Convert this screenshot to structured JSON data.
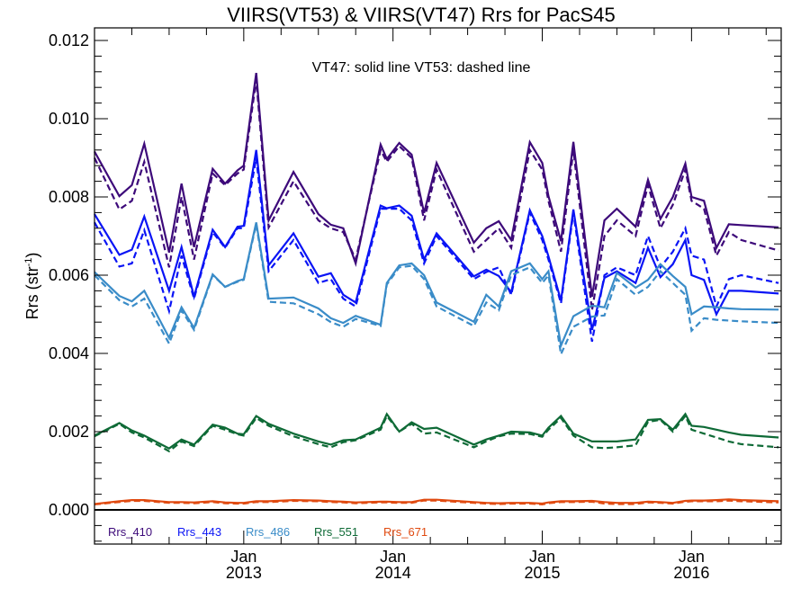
{
  "chart_data": {
    "type": "line",
    "title": "VIIRS(VT53) & VIIRS(VT47)  Rrs for PacS45",
    "annotation": "VT47: solid line   VT53: dashed line",
    "ylabel": "Rrs (str",
    "ylabel_sup": "-1",
    "ylabel_suffix": ")",
    "xlabel": "",
    "ylim": [
      -0.0009,
      0.0124
    ],
    "xlim": [
      "2012-01",
      "2016-08"
    ],
    "yticks": [
      0.0,
      0.002,
      0.004,
      0.006,
      0.008,
      0.01,
      0.012
    ],
    "ytick_labels": [
      "0.000",
      "0.002",
      "0.004",
      "0.006",
      "0.008",
      "0.010",
      "0.012"
    ],
    "xticks": [
      {
        "month": 12,
        "line1": "Jan",
        "line2": "2013"
      },
      {
        "month": 24,
        "line1": "Jan",
        "line2": "2014"
      },
      {
        "month": 36,
        "line1": "Jan",
        "line2": "2015"
      },
      {
        "month": 48,
        "line1": "Jan",
        "line2": "2016"
      }
    ],
    "x_month_index": [
      0,
      2,
      3,
      4,
      6,
      7,
      8,
      9.5,
      10.5,
      11.5,
      12,
      13,
      14,
      16,
      18,
      19,
      20,
      21,
      23,
      23.5,
      24.5,
      25.5,
      26.5,
      27.5,
      30.5,
      31.5,
      32.5,
      33.5,
      35,
      36,
      36.5,
      37.5,
      38.5,
      40,
      41,
      42,
      43.5,
      44.5,
      45.5,
      46.5,
      47.5,
      48,
      49,
      50,
      51,
      52,
      55
    ],
    "series": [
      {
        "name": "Rrs_410",
        "color": "#3d0a7a",
        "style": "solid",
        "values": [
          0.00916,
          0.00802,
          0.0083,
          0.00936,
          0.00658,
          0.00834,
          0.00672,
          0.00872,
          0.00834,
          0.00868,
          0.0088,
          0.01117,
          0.0074,
          0.00864,
          0.00756,
          0.00729,
          0.0072,
          0.0063,
          0.00934,
          0.00897,
          0.00938,
          0.00908,
          0.00759,
          0.00887,
          0.00683,
          0.0072,
          0.00738,
          0.0069,
          0.0094,
          0.00887,
          0.00802,
          0.00687,
          0.00941,
          0.00545,
          0.0074,
          0.0077,
          0.00724,
          0.00844,
          0.00744,
          0.008,
          0.00885,
          0.008,
          0.0079,
          0.0067,
          0.0073,
          0.00728,
          0.00722
        ]
      },
      {
        "name": "Rrs_410",
        "color": "#3d0a7a",
        "style": "dashed",
        "values": [
          0.009,
          0.00768,
          0.0079,
          0.0089,
          0.0062,
          0.008,
          0.0064,
          0.0086,
          0.0083,
          0.0086,
          0.0087,
          0.011,
          0.00722,
          0.0084,
          0.0074,
          0.0072,
          0.0071,
          0.0064,
          0.0092,
          0.0089,
          0.0093,
          0.009,
          0.0074,
          0.0087,
          0.0066,
          0.0069,
          0.0072,
          0.0067,
          0.0092,
          0.0087,
          0.0079,
          0.0066,
          0.0092,
          0.0051,
          0.007,
          0.0074,
          0.007,
          0.0083,
          0.0072,
          0.0078,
          0.0087,
          0.0079,
          0.0077,
          0.0065,
          0.0071,
          0.0069,
          0.00663
        ]
      },
      {
        "name": "Rrs_443",
        "color": "#0a14f5",
        "style": "solid",
        "values": [
          0.00756,
          0.00652,
          0.00665,
          0.0075,
          0.0056,
          0.00672,
          0.00545,
          0.00716,
          0.00672,
          0.00724,
          0.00726,
          0.0092,
          0.00625,
          0.00707,
          0.00596,
          0.00605,
          0.0055,
          0.0053,
          0.00778,
          0.00771,
          0.00778,
          0.00752,
          0.0064,
          0.00707,
          0.00597,
          0.00614,
          0.00598,
          0.00556,
          0.00766,
          0.007,
          0.00648,
          0.00535,
          0.00768,
          0.0046,
          0.00593,
          0.0061,
          0.0058,
          0.0067,
          0.00595,
          0.00628,
          0.0069,
          0.006,
          0.00588,
          0.005,
          0.0056,
          0.0056,
          0.00553
        ]
      },
      {
        "name": "Rrs_443",
        "color": "#0a14f5",
        "style": "dashed",
        "values": [
          0.00735,
          0.00622,
          0.0063,
          0.00715,
          0.00508,
          0.0065,
          0.0054,
          0.0071,
          0.0067,
          0.0072,
          0.0072,
          0.009,
          0.0061,
          0.0069,
          0.0058,
          0.0059,
          0.0054,
          0.0052,
          0.0077,
          0.0077,
          0.0077,
          0.0074,
          0.0063,
          0.007,
          0.0059,
          0.00608,
          0.0062,
          0.0055,
          0.0076,
          0.0069,
          0.0064,
          0.00528,
          0.0076,
          0.0043,
          0.006,
          0.0062,
          0.006,
          0.007,
          0.0062,
          0.0066,
          0.0072,
          0.0065,
          0.0064,
          0.0052,
          0.0059,
          0.006,
          0.0058
        ]
      },
      {
        "name": "Rrs_486",
        "color": "#3a8cc8",
        "style": "solid",
        "values": [
          0.00608,
          0.00547,
          0.00533,
          0.0056,
          0.0044,
          0.00518,
          0.00465,
          0.00602,
          0.0057,
          0.00585,
          0.0059,
          0.00735,
          0.0054,
          0.00543,
          0.00515,
          0.0049,
          0.00478,
          0.00496,
          0.00473,
          0.0058,
          0.00625,
          0.0063,
          0.006,
          0.0053,
          0.00481,
          0.0055,
          0.0052,
          0.0061,
          0.0063,
          0.0059,
          0.0061,
          0.0042,
          0.00495,
          0.00522,
          0.00518,
          0.00606,
          0.00568,
          0.00588,
          0.00628,
          0.00598,
          0.0057,
          0.005,
          0.0052,
          0.00518,
          0.00515,
          0.00513,
          0.00512
        ]
      },
      {
        "name": "Rrs_486",
        "color": "#3a8cc8",
        "style": "dashed",
        "values": [
          0.006,
          0.00536,
          0.0052,
          0.0054,
          0.00425,
          0.0051,
          0.0046,
          0.006,
          0.0057,
          0.00583,
          0.00588,
          0.0073,
          0.00532,
          0.00528,
          0.005,
          0.0048,
          0.00468,
          0.00488,
          0.0047,
          0.00576,
          0.0062,
          0.00624,
          0.0059,
          0.0052,
          0.0047,
          0.0053,
          0.0051,
          0.006,
          0.0062,
          0.0058,
          0.006,
          0.00398,
          0.00468,
          0.00494,
          0.00497,
          0.0059,
          0.0055,
          0.0057,
          0.0061,
          0.0058,
          0.0055,
          0.00458,
          0.0049,
          0.00486,
          0.00484,
          0.00482,
          0.00478
        ]
      },
      {
        "name": "Rrs_551",
        "color": "#0e6a36",
        "style": "solid",
        "values": [
          0.0019,
          0.00222,
          0.00203,
          0.0019,
          0.00157,
          0.0018,
          0.00167,
          0.00218,
          0.0021,
          0.00195,
          0.00193,
          0.0024,
          0.0022,
          0.00195,
          0.00175,
          0.00167,
          0.00178,
          0.0018,
          0.0021,
          0.00245,
          0.002,
          0.00224,
          0.00207,
          0.0021,
          0.00167,
          0.0018,
          0.0019,
          0.002,
          0.00198,
          0.0019,
          0.0021,
          0.0024,
          0.00195,
          0.00175,
          0.00175,
          0.00175,
          0.0018,
          0.0023,
          0.00232,
          0.00205,
          0.00245,
          0.00215,
          0.00212,
          0.00205,
          0.00198,
          0.00192,
          0.00185
        ]
      },
      {
        "name": "Rrs_551",
        "color": "#0e6a36",
        "style": "dashed",
        "values": [
          0.00188,
          0.0022,
          0.00198,
          0.00185,
          0.0015,
          0.00175,
          0.00163,
          0.00215,
          0.00205,
          0.00193,
          0.0019,
          0.00235,
          0.00215,
          0.00188,
          0.00168,
          0.0016,
          0.00173,
          0.00178,
          0.00205,
          0.0024,
          0.002,
          0.0022,
          0.00195,
          0.00198,
          0.0016,
          0.00175,
          0.00188,
          0.00195,
          0.00194,
          0.00187,
          0.00205,
          0.00235,
          0.0019,
          0.0016,
          0.00158,
          0.0016,
          0.00165,
          0.00225,
          0.0023,
          0.002,
          0.0024,
          0.00205,
          0.00195,
          0.00185,
          0.00175,
          0.00168,
          0.0016
        ]
      },
      {
        "name": "Rrs_671",
        "color": "#e04a10",
        "style": "solid",
        "values": [
          0.00015,
          0.00022,
          0.00025,
          0.00025,
          0.0002,
          0.0002,
          0.00019,
          0.00022,
          0.00019,
          0.00018,
          0.00018,
          0.00022,
          0.00022,
          0.00025,
          0.00024,
          0.00022,
          0.00021,
          0.00019,
          0.00021,
          0.00021,
          0.0002,
          0.0002,
          0.00026,
          0.00026,
          0.0002,
          0.00018,
          0.00017,
          0.00018,
          0.00018,
          0.00016,
          0.00019,
          0.00022,
          0.00022,
          0.00023,
          0.0002,
          0.00018,
          0.00018,
          0.00021,
          0.0002,
          0.00018,
          0.00023,
          0.00024,
          0.00024,
          0.00025,
          0.00027,
          0.00025,
          0.00022
        ]
      },
      {
        "name": "Rrs_671",
        "color": "#e04a10",
        "style": "dashed",
        "values": [
          0.00014,
          0.0002,
          0.00023,
          0.00023,
          0.00018,
          0.00018,
          0.00017,
          0.0002,
          0.00017,
          0.00016,
          0.00016,
          0.0002,
          0.0002,
          0.00023,
          0.00022,
          0.0002,
          0.00019,
          0.00017,
          0.00019,
          0.00019,
          0.00018,
          0.00018,
          0.00024,
          0.00024,
          0.00018,
          0.00016,
          0.00015,
          0.00016,
          0.00016,
          0.00014,
          0.00017,
          0.0002,
          0.0002,
          0.00021,
          0.00016,
          0.00015,
          0.00015,
          0.00019,
          0.00018,
          0.00016,
          0.00021,
          0.00022,
          0.00022,
          0.00022,
          0.00024,
          0.00022,
          0.00019
        ]
      }
    ],
    "legend": [
      {
        "label": "Rrs_410",
        "color": "#3d0a7a"
      },
      {
        "label": "Rrs_443",
        "color": "#0a14f5"
      },
      {
        "label": "Rrs_486",
        "color": "#3a8cc8"
      },
      {
        "label": "Rrs_551",
        "color": "#0e6a36"
      },
      {
        "label": "Rrs_671",
        "color": "#e04a10"
      }
    ],
    "legend_position": "bottom-left",
    "zero_line": true,
    "grid": false
  }
}
